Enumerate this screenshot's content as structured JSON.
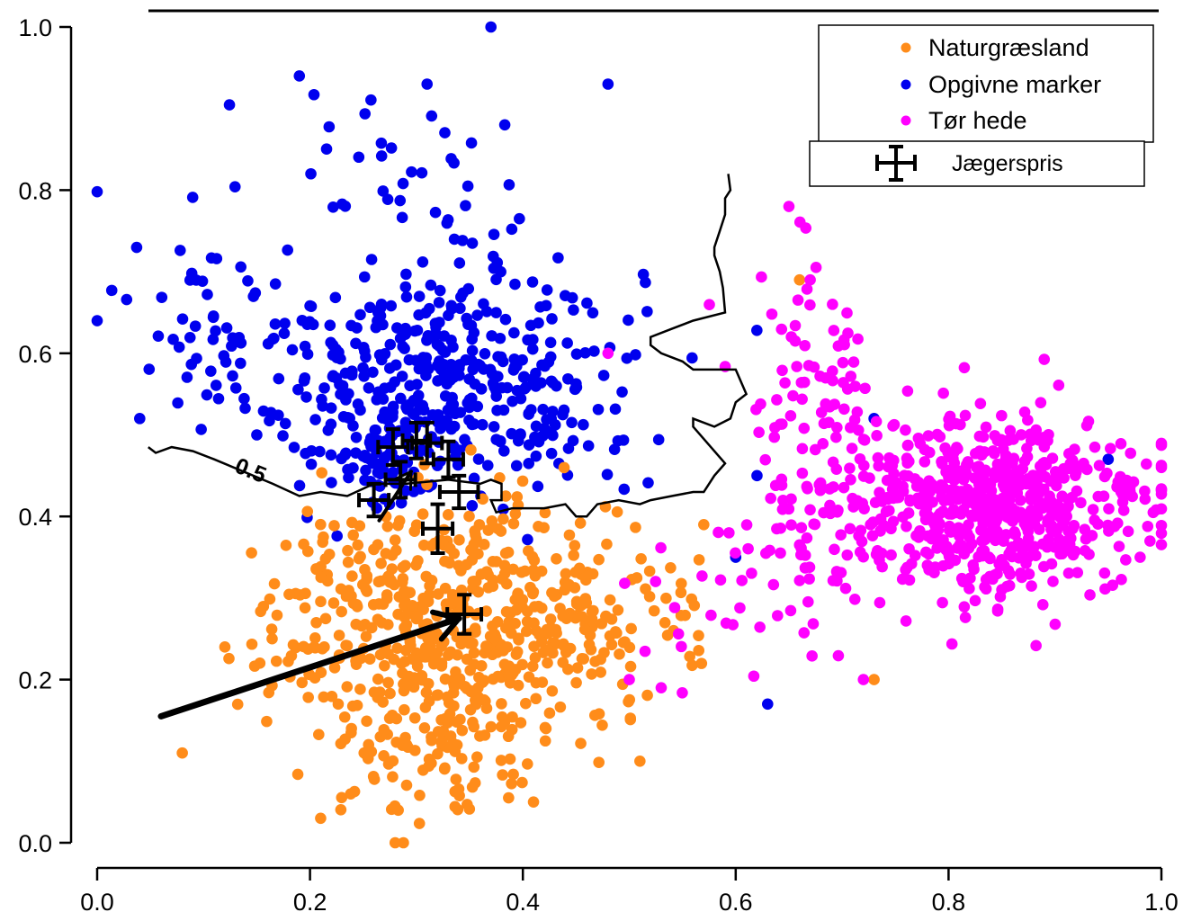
{
  "chart_data": {
    "type": "scatter",
    "title": "",
    "xlabel": "",
    "ylabel": "",
    "xlim": [
      0.0,
      1.0
    ],
    "ylim": [
      0.0,
      1.0
    ],
    "x_ticks": [
      "0.0",
      "0.2",
      "0.4",
      "0.6",
      "0.8",
      "1.0"
    ],
    "y_ticks": [
      "0.0",
      "0.2",
      "0.4",
      "0.6",
      "0.8",
      "1.0"
    ],
    "grid": false,
    "legend_placement": "top-right",
    "colors": {
      "Naturgræsland": "#ff8c1a",
      "Opgivne marker": "#0000ee",
      "Tør hede": "#ff00ff",
      "Jægerspris": "#000000"
    },
    "series": [
      {
        "name": "Naturgræsland",
        "color": "#ff8c1a",
        "clusters": [
          {
            "center": [
              0.32,
              0.27
            ],
            "spread": [
              0.085,
              0.075
            ],
            "count": 480
          },
          {
            "center": [
              0.44,
              0.28
            ],
            "spread": [
              0.06,
              0.05
            ],
            "count": 120
          },
          {
            "center": [
              0.33,
              0.12
            ],
            "spread": [
              0.05,
              0.05
            ],
            "count": 90
          }
        ],
        "points": [
          [
            0.08,
            0.11
          ],
          [
            0.12,
            0.24
          ],
          [
            0.21,
            0.03
          ],
          [
            0.41,
            0.05
          ],
          [
            0.28,
            0.0
          ],
          [
            0.51,
            0.1
          ],
          [
            0.57,
            0.39
          ],
          [
            0.66,
            0.69
          ],
          [
            0.73,
            0.2
          ]
        ]
      },
      {
        "name": "Opgivne marker",
        "color": "#0000ee",
        "clusters": [
          {
            "center": [
              0.33,
              0.57
            ],
            "spread": [
              0.09,
              0.075
            ],
            "count": 420
          },
          {
            "center": [
              0.27,
              0.48
            ],
            "spread": [
              0.04,
              0.035
            ],
            "count": 60
          },
          {
            "center": [
              0.12,
              0.64
            ],
            "spread": [
              0.045,
              0.05
            ],
            "count": 45
          },
          {
            "center": [
              0.28,
              0.8
            ],
            "spread": [
              0.1,
              0.07
            ],
            "count": 40
          }
        ],
        "points": [
          [
            0.0,
            0.64
          ],
          [
            0.37,
            1.0
          ],
          [
            0.19,
            0.94
          ],
          [
            0.31,
            0.93
          ],
          [
            0.48,
            0.93
          ],
          [
            0.63,
            0.17
          ],
          [
            0.04,
            0.52
          ],
          [
            0.15,
            0.5
          ],
          [
            0.6,
            0.35
          ],
          [
            0.62,
            0.45
          ],
          [
            0.73,
            0.52
          ],
          [
            0.95,
            0.47
          ]
        ]
      },
      {
        "name": "Tør hede",
        "color": "#ff00ff",
        "clusters": [
          {
            "center": [
              0.84,
              0.41
            ],
            "spread": [
              0.075,
              0.055
            ],
            "count": 620
          },
          {
            "center": [
              0.67,
              0.5
            ],
            "spread": [
              0.035,
              0.12
            ],
            "count": 110
          },
          {
            "center": [
              0.62,
              0.3
            ],
            "spread": [
              0.05,
              0.05
            ],
            "count": 30
          }
        ],
        "points": [
          [
            0.65,
            0.78
          ],
          [
            0.67,
            0.69
          ],
          [
            0.98,
            0.35
          ],
          [
            1.0,
            0.46
          ],
          [
            0.72,
            0.2
          ],
          [
            0.5,
            0.2
          ],
          [
            0.53,
            0.19
          ],
          [
            0.48,
            0.6
          ]
        ]
      }
    ],
    "jaegerspris": {
      "name": "Jægerspris",
      "points": [
        {
          "x": 0.278,
          "y": 0.485,
          "xerr": 0.014,
          "yerr": 0.022
        },
        {
          "x": 0.3,
          "y": 0.493,
          "xerr": 0.013,
          "yerr": 0.022
        },
        {
          "x": 0.31,
          "y": 0.49,
          "xerr": 0.014,
          "yerr": 0.025
        },
        {
          "x": 0.33,
          "y": 0.47,
          "xerr": 0.014,
          "yerr": 0.022
        },
        {
          "x": 0.285,
          "y": 0.445,
          "xerr": 0.014,
          "yerr": 0.022
        },
        {
          "x": 0.26,
          "y": 0.42,
          "xerr": 0.014,
          "yerr": 0.02
        },
        {
          "x": 0.34,
          "y": 0.43,
          "xerr": 0.018,
          "yerr": 0.02
        },
        {
          "x": 0.32,
          "y": 0.385,
          "xerr": 0.014,
          "yerr": 0.03
        },
        {
          "x": 0.345,
          "y": 0.28,
          "xerr": 0.016,
          "yerr": 0.024
        }
      ]
    },
    "arrows": [
      {
        "from": [
          0.06,
          0.155
        ],
        "to": [
          0.34,
          0.275
        ]
      },
      {
        "from": [
          0.265,
          0.395
        ],
        "to": [
          0.295,
          0.455
        ]
      }
    ],
    "contour": {
      "label": "0.5",
      "label_at": [
        0.128,
        0.455
      ],
      "line": [
        [
          0.048,
          0.485
        ],
        [
          0.055,
          0.478
        ],
        [
          0.07,
          0.485
        ],
        [
          0.09,
          0.48
        ],
        [
          0.11,
          0.47
        ],
        [
          0.165,
          0.44
        ],
        [
          0.19,
          0.425
        ],
        [
          0.21,
          0.43
        ],
        [
          0.235,
          0.425
        ],
        [
          0.26,
          0.44
        ],
        [
          0.29,
          0.44
        ],
        [
          0.33,
          0.445
        ],
        [
          0.36,
          0.44
        ],
        [
          0.37,
          0.445
        ],
        [
          0.38,
          0.44
        ],
        [
          0.38,
          0.42
        ],
        [
          0.37,
          0.42
        ],
        [
          0.375,
          0.405
        ],
        [
          0.39,
          0.41
        ],
        [
          0.42,
          0.41
        ],
        [
          0.44,
          0.415
        ],
        [
          0.45,
          0.4
        ],
        [
          0.46,
          0.4
        ],
        [
          0.47,
          0.415
        ],
        [
          0.49,
          0.42
        ],
        [
          0.51,
          0.415
        ],
        [
          0.52,
          0.42
        ],
        [
          0.54,
          0.425
        ],
        [
          0.56,
          0.43
        ],
        [
          0.57,
          0.43
        ],
        [
          0.58,
          0.45
        ],
        [
          0.59,
          0.465
        ],
        [
          0.58,
          0.48
        ],
        [
          0.56,
          0.51
        ],
        [
          0.56,
          0.52
        ],
        [
          0.58,
          0.51
        ],
        [
          0.595,
          0.52
        ],
        [
          0.6,
          0.54
        ],
        [
          0.61,
          0.55
        ],
        [
          0.6,
          0.58
        ],
        [
          0.58,
          0.58
        ],
        [
          0.56,
          0.58
        ],
        [
          0.55,
          0.59
        ],
        [
          0.53,
          0.6
        ],
        [
          0.52,
          0.61
        ],
        [
          0.52,
          0.62
        ],
        [
          0.54,
          0.63
        ],
        [
          0.56,
          0.64
        ],
        [
          0.59,
          0.65
        ],
        [
          0.588,
          0.68
        ],
        [
          0.585,
          0.7
        ],
        [
          0.58,
          0.72
        ],
        [
          0.58,
          0.73
        ],
        [
          0.585,
          0.75
        ],
        [
          0.59,
          0.77
        ],
        [
          0.59,
          0.79
        ],
        [
          0.595,
          0.8
        ],
        [
          0.593,
          0.82
        ]
      ]
    },
    "legend": {
      "entries": [
        "Naturgræsland",
        "Opgivne marker",
        "Tør hede"
      ],
      "marker_entry": "Jægerspris"
    }
  }
}
